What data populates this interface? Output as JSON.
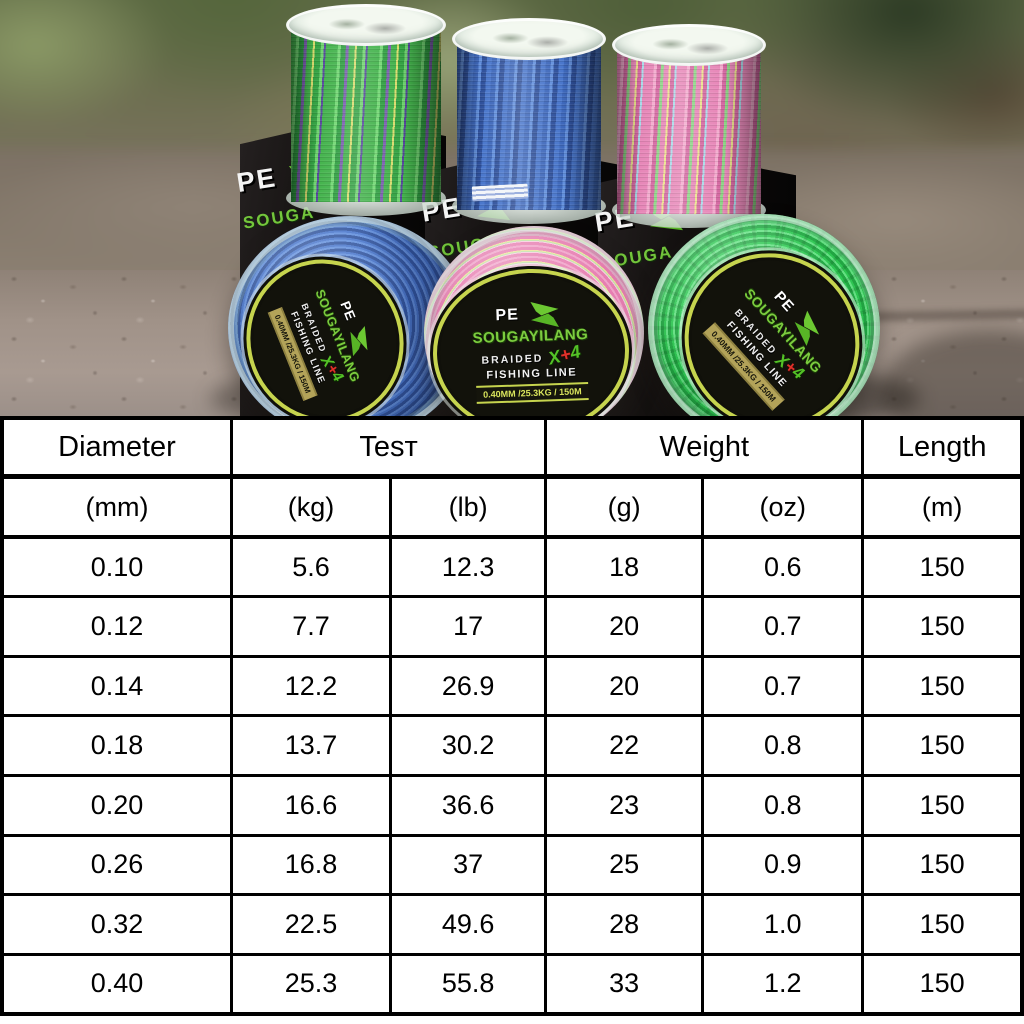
{
  "photo": {
    "spool_label": {
      "pe": "PE",
      "brand": "SOUGAYILANG",
      "braided": "BRAIDED",
      "strand_x": "X",
      "strand_plus": "+",
      "strand_count": "4",
      "product": "FISHING LINE",
      "spec": "0.40MM /25.3KG / 150M"
    },
    "box_label": {
      "pe": "PE",
      "brand_partial": "SOUGA"
    },
    "colors": {
      "brand_green": "#7ccc3f",
      "logo_green": "#6cc832",
      "plus_red": "#e0312a",
      "ring_yellow": "#c6d44e",
      "spec_text_green": "#d9e45c",
      "line_blue": "#4a77cc",
      "line_bright_green": "#2fc853",
      "line_pink": "#e77fb2",
      "line_green_multicolor": "#43b34c"
    }
  },
  "table": {
    "header": {
      "diameter": "Diameter",
      "test": "Tesт",
      "weight": "Weight",
      "length": "Length"
    },
    "units": [
      "(mm)",
      "(kg)",
      "(lb)",
      "(g)",
      "(oz)",
      "(m)"
    ],
    "rows": [
      [
        "0.10",
        "5.6",
        "12.3",
        "18",
        "0.6",
        "150"
      ],
      [
        "0.12",
        "7.7",
        "17",
        "20",
        "0.7",
        "150"
      ],
      [
        "0.14",
        "12.2",
        "26.9",
        "20",
        "0.7",
        "150"
      ],
      [
        "0.18",
        "13.7",
        "30.2",
        "22",
        "0.8",
        "150"
      ],
      [
        "0.20",
        "16.6",
        "36.6",
        "23",
        "0.8",
        "150"
      ],
      [
        "0.26",
        "16.8",
        "37",
        "25",
        "0.9",
        "150"
      ],
      [
        "0.32",
        "22.5",
        "49.6",
        "28",
        "1.0",
        "150"
      ],
      [
        "0.40",
        "25.3",
        "55.8",
        "33",
        "1.2",
        "150"
      ]
    ]
  }
}
